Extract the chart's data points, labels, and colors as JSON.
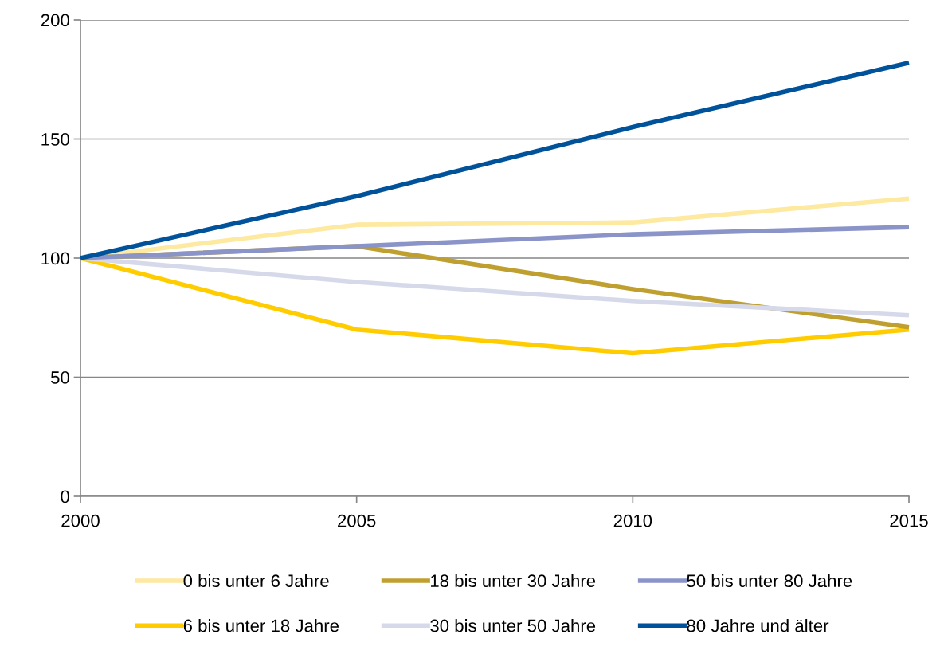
{
  "chart_data": {
    "type": "line",
    "x": [
      2000,
      2005,
      2010,
      2015
    ],
    "series": [
      {
        "name": "0 bis unter 6 Jahre",
        "color": "#fde9a0",
        "values": [
          100,
          114,
          115,
          125
        ]
      },
      {
        "name": "6 bis unter 18 Jahre",
        "color": "#ffcc00",
        "values": [
          100,
          70,
          60,
          70
        ]
      },
      {
        "name": "18 bis unter 30 Jahre",
        "color": "#bf9f2f",
        "values": [
          100,
          105,
          87,
          71
        ]
      },
      {
        "name": "30 bis unter 50 Jahre",
        "color": "#d5d9ea",
        "values": [
          100,
          90,
          82,
          76
        ]
      },
      {
        "name": "50 bis unter 80 Jahre",
        "color": "#8a94c8",
        "values": [
          100,
          105,
          110,
          113
        ]
      },
      {
        "name": "80 Jahre und älter",
        "color": "#00529b",
        "values": [
          100,
          126,
          155,
          182
        ]
      }
    ],
    "xlim": [
      2000,
      2015
    ],
    "xticks": [
      2000,
      2005,
      2010,
      2015
    ],
    "ylim": [
      0,
      200
    ],
    "yticks": [
      0,
      50,
      100,
      150,
      200
    ],
    "grid": "y",
    "legend": "bottom",
    "marker": "none",
    "line_style": "solid"
  }
}
